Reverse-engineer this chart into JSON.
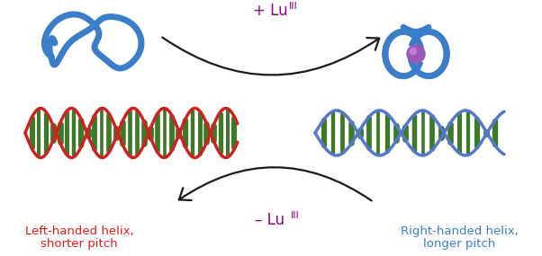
{
  "plus_lu_text": "+ Lu",
  "plus_lu_super": "III",
  "minus_lu_text": "– Lu",
  "minus_lu_super": "III",
  "left_label_line1": "Left-handed helix,",
  "left_label_line2": "shorter pitch",
  "right_label_line1": "Right-handed helix,",
  "right_label_line2": "longer pitch",
  "label_color_left": "#e8191a",
  "label_color_right": "#3a7dc9",
  "lu_color": "#8b008b",
  "backbone_color_left": "#cc2222",
  "backbone_color_right": "#5577cc",
  "bar_color": "#3d7a28",
  "knot_color": "#3a7dc9",
  "sphere_color": "#9b59b6",
  "arrow_color": "#1a1a1a",
  "bg_color": "#ffffff",
  "figsize": [
    6.02,
    2.85
  ],
  "dpi": 100
}
